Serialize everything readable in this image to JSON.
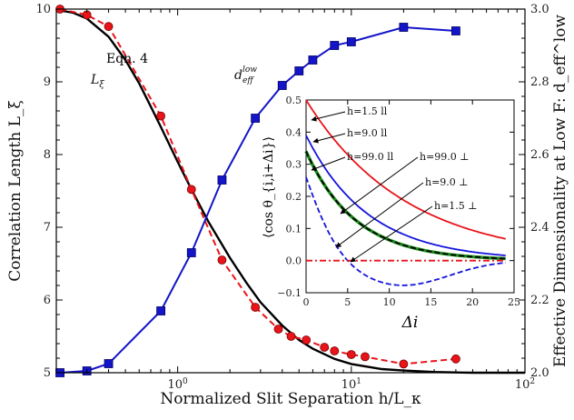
{
  "chart_data": [
    {
      "type": "line",
      "x_scale": "log",
      "xlabel": "Normalized Slit Separation h/L_κ",
      "ylabel": "Correlation Length L_ξ",
      "y2label": "Effective Dimensionality at Low F: d_eff^low",
      "xlim": [
        0.2,
        100
      ],
      "ylim": [
        5,
        10
      ],
      "y2lim": [
        2.0,
        3.0
      ],
      "x_ticks": [
        {
          "v": 1,
          "label": "10",
          "sup": "0"
        },
        {
          "v": 10,
          "label": "10",
          "sup": "1"
        },
        {
          "v": 100,
          "label": "10",
          "sup": "2"
        }
      ],
      "y_ticks": [
        5,
        6,
        7,
        8,
        9,
        10
      ],
      "y2_ticks": [
        "2.0",
        "2.2",
        "2.4",
        "2.6",
        "2.8",
        "3.0"
      ],
      "annotations": {
        "eqn": "Eqn. 4",
        "lxi_main": "L",
        "lxi_sub": "ξ",
        "deff_main": "d",
        "deff_sup": "low",
        "deff_sub": "eff"
      },
      "series": [
        {
          "name": "Eqn. 4",
          "style": "solid",
          "color": "#000000",
          "axis": "left",
          "x": [
            0.2,
            0.25,
            0.3,
            0.4,
            0.5,
            0.6,
            0.7,
            0.8,
            1.0,
            1.2,
            1.5,
            2.0,
            2.5,
            3,
            4,
            5,
            6,
            8,
            10,
            15,
            20,
            30,
            50,
            100
          ],
          "y": [
            9.99,
            9.95,
            9.87,
            9.62,
            9.3,
            8.98,
            8.66,
            8.38,
            7.9,
            7.52,
            7.08,
            6.58,
            6.23,
            5.97,
            5.65,
            5.45,
            5.33,
            5.19,
            5.12,
            5.05,
            5.03,
            5.01,
            5.0,
            5.0
          ]
        },
        {
          "name": "L_ξ",
          "style": "dashed",
          "color": "#e8141a",
          "marker": "circle",
          "axis": "left",
          "x": [
            0.21,
            0.3,
            0.4,
            0.8,
            1.2,
            1.8,
            2.8,
            3.8,
            4.5,
            5.5,
            7,
            8,
            10,
            12,
            20,
            40
          ],
          "y": [
            10.0,
            9.92,
            9.76,
            8.53,
            7.52,
            6.55,
            5.9,
            5.6,
            5.5,
            5.45,
            5.35,
            5.3,
            5.25,
            5.22,
            5.12,
            5.19
          ]
        },
        {
          "name": "d_eff^low",
          "style": "solid",
          "color": "#1414c8",
          "marker": "square",
          "axis": "right",
          "x": [
            0.21,
            0.3,
            0.4,
            0.8,
            1.2,
            1.8,
            2.8,
            4,
            5,
            6,
            8,
            10,
            20,
            40
          ],
          "y": [
            2.0,
            2.005,
            2.025,
            2.17,
            2.33,
            2.53,
            2.7,
            2.79,
            2.83,
            2.86,
            2.9,
            2.91,
            2.95,
            2.94
          ]
        }
      ]
    },
    {
      "type": "line",
      "xlabel": "Δi",
      "ylabel": "⟨cos θ_{i,i+Δi}⟩",
      "xlim": [
        0,
        25
      ],
      "ylim": [
        -0.1,
        0.5
      ],
      "x_ticks": [
        0,
        5,
        10,
        15,
        20,
        25
      ],
      "y_ticks": [
        "−0.1",
        "0.0",
        "0.1",
        "0.2",
        "0.3",
        "0.4",
        "0.5"
      ],
      "series": [
        {
          "name": "h=1.5 ll",
          "style": "solid",
          "color": "#e8141a",
          "decay": 12,
          "start": 0.5
        },
        {
          "name": "h=9.0 ll",
          "style": "solid",
          "color": "#1414dc",
          "decay": 7.5,
          "start": 0.39
        },
        {
          "name": "h=99.0 ll",
          "style": "solid",
          "color": "#1a8c1a",
          "decay": 6,
          "start": 0.34
        },
        {
          "name": "h=99.0 ⊥",
          "style": "dashed",
          "color": "#000000",
          "decay": 6,
          "start": 0.34
        },
        {
          "name": "h=9.0 ⊥",
          "style": "dashed",
          "color": "#1414dc",
          "decay": 3.6,
          "start": 0.26,
          "period": 15
        },
        {
          "name": "h=1.5 ⊥",
          "style": "dashdot",
          "color": "#e8141a",
          "constant": 0.0
        }
      ]
    }
  ]
}
